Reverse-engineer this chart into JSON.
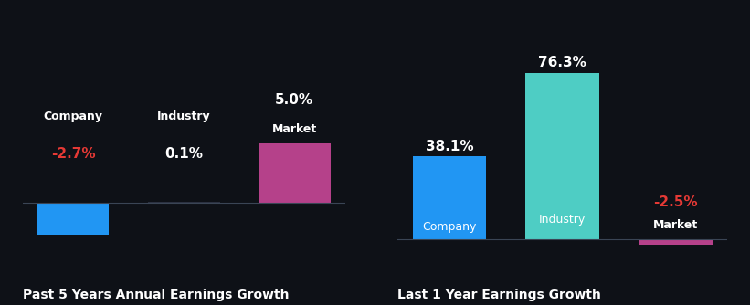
{
  "bg_color": "#0e1117",
  "chart1": {
    "title": "Past 5 Years Annual Earnings Growth",
    "categories": [
      "Company",
      "Industry",
      "Market"
    ],
    "values": [
      -2.7,
      0.1,
      5.0
    ],
    "colors": [
      "#2196f3",
      "#2b3040",
      "#b5418a"
    ],
    "label_colors": [
      "#e53935",
      "#ffffff",
      "#ffffff"
    ],
    "value_formats": [
      "-2.7%",
      "0.1%",
      "5.0%"
    ]
  },
  "chart2": {
    "title": "Last 1 Year Earnings Growth",
    "categories": [
      "Company",
      "Industry",
      "Market"
    ],
    "values": [
      38.1,
      76.3,
      -2.5
    ],
    "colors": [
      "#2196f3",
      "#4ecdc4",
      "#b5418a"
    ],
    "label_colors": [
      "#ffffff",
      "#ffffff",
      "#e53935"
    ],
    "value_formats": [
      "38.1%",
      "76.3%",
      "-2.5%"
    ]
  },
  "title_color": "#ffffff",
  "title_fontsize": 10,
  "value_fontsize": 11,
  "cat_fontsize": 9,
  "bar_width": 0.65
}
